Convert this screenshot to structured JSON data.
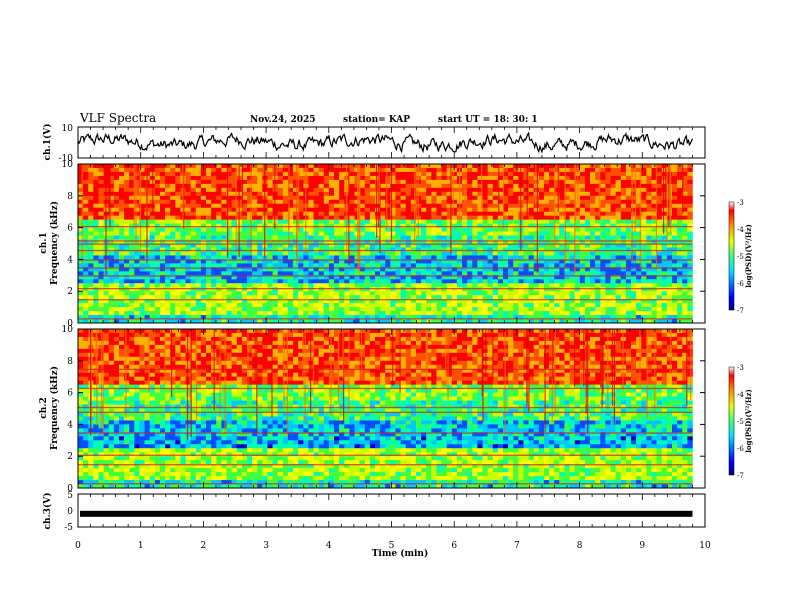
{
  "header": {
    "title": "VLF Spectra",
    "date": "Nov.24, 2025",
    "station": "station= KAP",
    "start_ut": "start  UT  =   18: 30: 1"
  },
  "chart_data": [
    {
      "type": "line",
      "name": "ch1-waveform",
      "ylabel": "ch.1(V)",
      "ylim": [
        -10,
        10
      ],
      "ytick_labels": [
        "10",
        "-10"
      ],
      "xlim": [
        0,
        9.8
      ],
      "description_values": "noisy waveform centered near 0 V"
    },
    {
      "type": "heatmap",
      "name": "ch1-spectrogram",
      "ylabel_line1": "ch.1",
      "ylabel_line2": "Frequency (kHz)",
      "ylim": [
        0,
        10
      ],
      "yticks": [
        0,
        2,
        4,
        6,
        8,
        10
      ],
      "ytick_labels": [
        "0",
        "2",
        "4",
        "6",
        "8",
        "10"
      ],
      "xlim": [
        0,
        9.8
      ],
      "colorbar": {
        "label": "log(PSD)(V²/Hz)",
        "range": [
          -7,
          -3
        ],
        "tick_labels": [
          "-3",
          "-4",
          "-5",
          "-6",
          "-7"
        ]
      },
      "bands_khz": [
        0.3,
        1.5,
        2.2,
        3.0,
        3.5,
        4.0,
        4.6,
        5.0,
        5.2,
        6.1
      ]
    },
    {
      "type": "heatmap",
      "name": "ch2-spectrogram",
      "ylabel_line1": "ch.2",
      "ylabel_line2": "Frequency (kHz)",
      "ylim": [
        0,
        10
      ],
      "yticks": [
        0,
        2,
        4,
        6,
        8,
        10
      ],
      "ytick_labels": [
        "0",
        "2",
        "4",
        "6",
        "8",
        "10"
      ],
      "xlim": [
        0,
        9.8
      ],
      "colorbar": {
        "label": "log(PSD)(V²/Hz)",
        "range": [
          -7,
          -3
        ],
        "tick_labels": [
          "-3",
          "-4",
          "-5",
          "-6",
          "-7"
        ]
      },
      "bands_khz": [
        0.3,
        1.5,
        2.1,
        3.5,
        4.8,
        5.1,
        6.3,
        7.5
      ]
    },
    {
      "type": "line",
      "name": "ch3-waveform",
      "ylabel": "ch.3(V)",
      "ylim": [
        -5,
        5
      ],
      "ytick_labels": [
        "5",
        "0",
        "-5"
      ],
      "level_value": -1,
      "xlim": [
        0,
        9.8
      ],
      "xlabel": "Time  (min)",
      "xticks": [
        0,
        1,
        2,
        3,
        4,
        5,
        6,
        7,
        8,
        9,
        10
      ],
      "xtick_labels": [
        "0",
        "1",
        "2",
        "3",
        "4",
        "5",
        "6",
        "7",
        "8",
        "9",
        "10"
      ]
    }
  ]
}
